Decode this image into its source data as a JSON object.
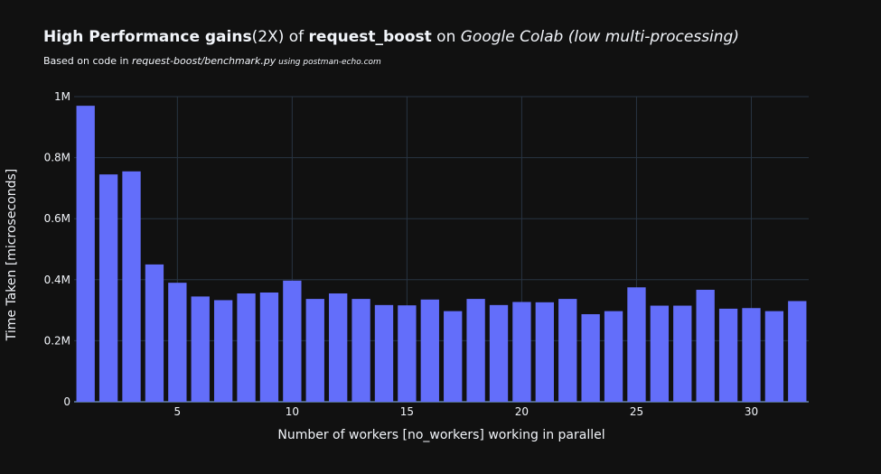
{
  "chart_data": {
    "type": "bar",
    "title_parts": [
      {
        "text": "High Performance gains",
        "style": "bold"
      },
      {
        "text": "(2X)",
        "style": "normal"
      },
      {
        "text": " of ",
        "style": "normal"
      },
      {
        "text": "request_boost",
        "style": "bold"
      },
      {
        "text": " on ",
        "style": "normal"
      },
      {
        "text": "Google Colab (low multi-processing)",
        "style": "italic"
      }
    ],
    "subtitle_parts": [
      {
        "text": "Based on code in ",
        "style": "normal"
      },
      {
        "text": "request-boost/benchmark.py",
        "style": "italic"
      },
      {
        "text": " using ",
        "style": "small-italic"
      },
      {
        "text": "postman-echo.com",
        "style": "small-italic"
      }
    ],
    "xlabel": "Number of workers [no_workers] working in parallel",
    "ylabel": "Time Taken [microseconds]",
    "x": [
      1,
      2,
      3,
      4,
      5,
      6,
      7,
      8,
      9,
      10,
      11,
      12,
      13,
      14,
      15,
      16,
      17,
      18,
      19,
      20,
      21,
      22,
      23,
      24,
      25,
      26,
      27,
      28,
      29,
      30,
      31,
      32
    ],
    "values": [
      970000,
      745000,
      755000,
      450000,
      390000,
      345000,
      333000,
      355000,
      358000,
      397000,
      337000,
      355000,
      337000,
      317000,
      316000,
      335000,
      297000,
      337000,
      317000,
      327000,
      326000,
      337000,
      287000,
      297000,
      375000,
      315000,
      315000,
      367000,
      305000,
      307000,
      297000,
      330000
    ],
    "xlim": [
      0.5,
      32.5
    ],
    "ylim": [
      0,
      1000000
    ],
    "x_ticks": [
      5,
      10,
      15,
      20,
      25,
      30
    ],
    "x_tick_labels": [
      "5",
      "10",
      "15",
      "20",
      "25",
      "30"
    ],
    "y_ticks": [
      0,
      200000,
      400000,
      600000,
      800000,
      1000000
    ],
    "y_tick_labels": [
      "0",
      "0.2M",
      "0.4M",
      "0.6M",
      "0.8M",
      "1M"
    ],
    "bar_color": "#636efa",
    "grid": true,
    "grid_color": "#283442",
    "background": "#111111"
  }
}
